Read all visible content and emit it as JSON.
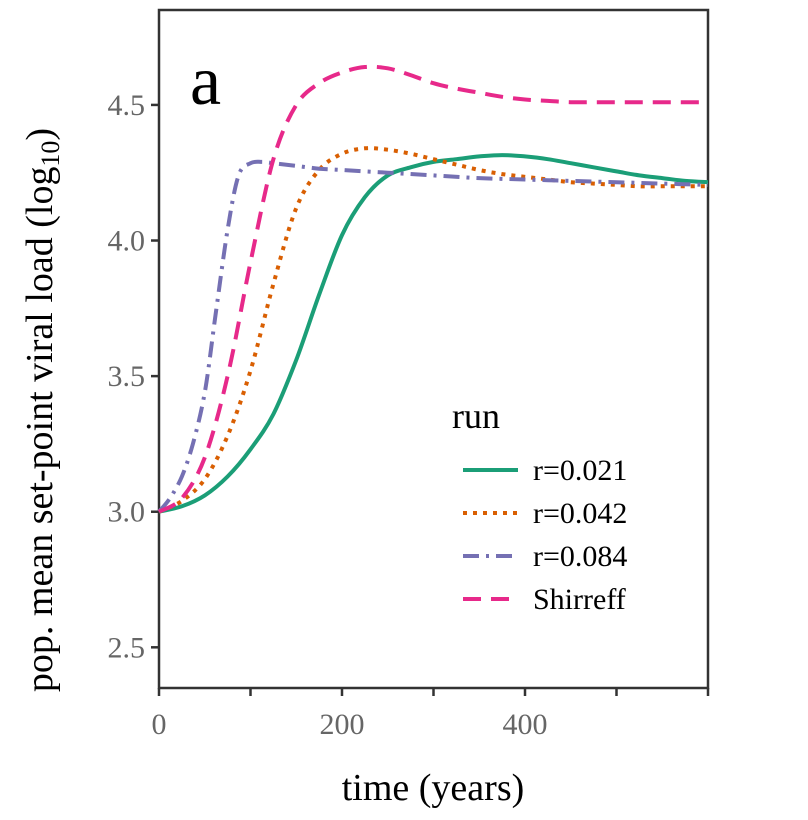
{
  "chart_data": {
    "type": "line",
    "panel_label": "a",
    "title": "",
    "xlabel": "time (years)",
    "ylabel_main": "pop. mean set-point viral load (log",
    "ylabel_sub": "10",
    "ylabel_end": ")",
    "xlim": [
      0,
      600
    ],
    "ylim": [
      2.35,
      4.85
    ],
    "x_ticks": [
      0,
      100,
      200,
      300,
      400,
      500,
      600
    ],
    "x_tick_labels": [
      {
        "value": 0,
        "label": "0"
      },
      {
        "value": 200,
        "label": "200"
      },
      {
        "value": 400,
        "label": "400"
      }
    ],
    "y_ticks": [
      {
        "value": 2.5,
        "label": "2.5"
      },
      {
        "value": 3.0,
        "label": "3.0"
      },
      {
        "value": 3.5,
        "label": "3.5"
      },
      {
        "value": 4.0,
        "label": "4.0"
      },
      {
        "value": 4.5,
        "label": "4.5"
      }
    ],
    "grid": false,
    "legend": {
      "title": "run",
      "position": "bottom-right"
    },
    "series": [
      {
        "name": "r=0.021",
        "color": "#1b9e77",
        "dash": "solid",
        "points": [
          [
            0,
            3.0
          ],
          [
            25,
            3.02
          ],
          [
            50,
            3.06
          ],
          [
            75,
            3.13
          ],
          [
            100,
            3.23
          ],
          [
            125,
            3.36
          ],
          [
            150,
            3.56
          ],
          [
            175,
            3.8
          ],
          [
            200,
            4.02
          ],
          [
            225,
            4.16
          ],
          [
            250,
            4.24
          ],
          [
            275,
            4.27
          ],
          [
            300,
            4.29
          ],
          [
            325,
            4.3
          ],
          [
            350,
            4.31
          ],
          [
            375,
            4.315
          ],
          [
            400,
            4.31
          ],
          [
            425,
            4.3
          ],
          [
            450,
            4.285
          ],
          [
            475,
            4.27
          ],
          [
            500,
            4.255
          ],
          [
            525,
            4.24
          ],
          [
            550,
            4.23
          ],
          [
            575,
            4.22
          ],
          [
            600,
            4.215
          ]
        ]
      },
      {
        "name": "r=0.042",
        "color": "#d95f02",
        "dash": "dotted",
        "points": [
          [
            0,
            3.0
          ],
          [
            25,
            3.04
          ],
          [
            50,
            3.12
          ],
          [
            75,
            3.28
          ],
          [
            100,
            3.52
          ],
          [
            125,
            3.84
          ],
          [
            150,
            4.12
          ],
          [
            175,
            4.26
          ],
          [
            200,
            4.32
          ],
          [
            225,
            4.34
          ],
          [
            250,
            4.335
          ],
          [
            275,
            4.32
          ],
          [
            300,
            4.3
          ],
          [
            325,
            4.28
          ],
          [
            350,
            4.26
          ],
          [
            375,
            4.245
          ],
          [
            400,
            4.235
          ],
          [
            425,
            4.225
          ],
          [
            450,
            4.215
          ],
          [
            475,
            4.21
          ],
          [
            500,
            4.205
          ],
          [
            525,
            4.2
          ],
          [
            550,
            4.2
          ],
          [
            575,
            4.2
          ],
          [
            600,
            4.2
          ]
        ]
      },
      {
        "name": "r=0.084",
        "color": "#7570b3",
        "dash": "longdash",
        "points": [
          [
            0,
            3.0
          ],
          [
            12,
            3.05
          ],
          [
            25,
            3.13
          ],
          [
            37,
            3.25
          ],
          [
            50,
            3.44
          ],
          [
            62,
            3.73
          ],
          [
            75,
            4.04
          ],
          [
            87,
            4.24
          ],
          [
            100,
            4.285
          ],
          [
            112,
            4.29
          ],
          [
            125,
            4.285
          ],
          [
            150,
            4.275
          ],
          [
            175,
            4.265
          ],
          [
            200,
            4.26
          ],
          [
            250,
            4.25
          ],
          [
            300,
            4.24
          ],
          [
            350,
            4.23
          ],
          [
            400,
            4.225
          ],
          [
            450,
            4.22
          ],
          [
            500,
            4.215
          ],
          [
            550,
            4.21
          ],
          [
            600,
            4.205
          ]
        ]
      },
      {
        "name": "Shirreff",
        "color": "#e7298a",
        "dash": "dashed",
        "points": [
          [
            0,
            3.0
          ],
          [
            25,
            3.05
          ],
          [
            50,
            3.2
          ],
          [
            75,
            3.5
          ],
          [
            100,
            3.92
          ],
          [
            125,
            4.3
          ],
          [
            150,
            4.5
          ],
          [
            175,
            4.58
          ],
          [
            200,
            4.62
          ],
          [
            225,
            4.64
          ],
          [
            250,
            4.635
          ],
          [
            275,
            4.61
          ],
          [
            300,
            4.58
          ],
          [
            325,
            4.56
          ],
          [
            350,
            4.545
          ],
          [
            375,
            4.53
          ],
          [
            400,
            4.52
          ],
          [
            425,
            4.515
          ],
          [
            450,
            4.51
          ],
          [
            475,
            4.51
          ],
          [
            500,
            4.51
          ],
          [
            525,
            4.51
          ],
          [
            550,
            4.51
          ],
          [
            575,
            4.51
          ],
          [
            600,
            4.51
          ]
        ]
      }
    ]
  }
}
